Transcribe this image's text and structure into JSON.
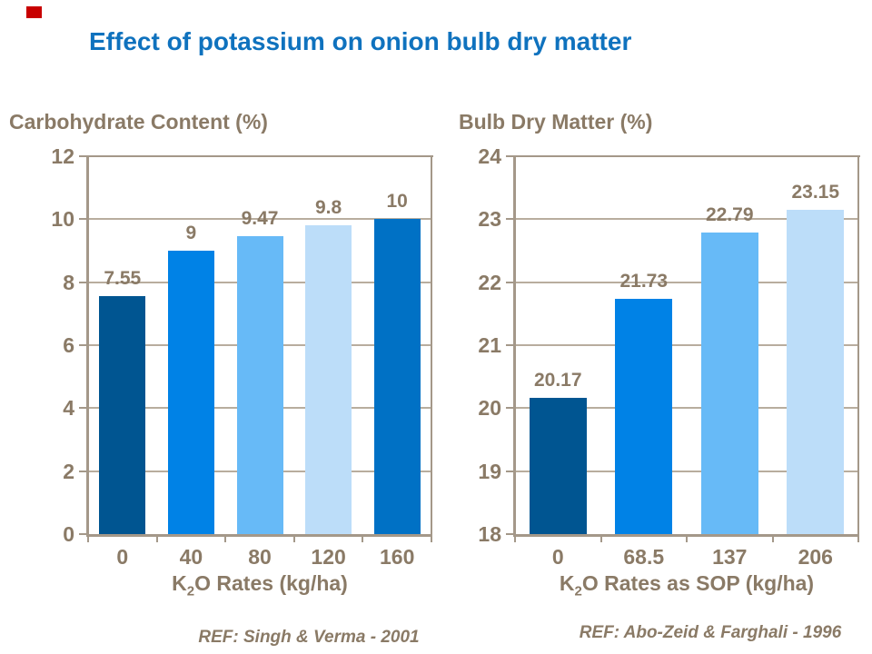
{
  "slide": {
    "title": "Effect of potassium on onion bulb dry matter"
  },
  "colors": {
    "background": "#FFFFFF",
    "title_blue": "#0F72BE",
    "text_brown": "#8A7A66",
    "axis_line": "#A49889",
    "grid_line": "#B8AD9E",
    "red_marker": "#C80000"
  },
  "chart_data": [
    {
      "type": "bar",
      "title": "Carbohydrate Content (%)",
      "xlabel": "K2O Rates (kg/ha)",
      "xlabel_parts": [
        "K",
        "2",
        "O Rates (kg/ha)"
      ],
      "ylabel": "",
      "categories": [
        "0",
        "40",
        "80",
        "120",
        "160"
      ],
      "values": [
        7.55,
        9,
        9.47,
        9.8,
        10
      ],
      "value_labels": [
        "7.55",
        "9",
        "9.47",
        "9.8",
        "10"
      ],
      "ylim": [
        0,
        12
      ],
      "yticks": [
        12,
        10,
        8,
        6,
        4,
        2,
        0
      ],
      "grid": true,
      "legend": "none",
      "bar_colors": [
        "#005591",
        "#0082E6",
        "#67BAF7",
        "#BCDDF9",
        "#0071C5"
      ],
      "ref": "REF: Singh & Verma -  2001"
    },
    {
      "type": "bar",
      "title": "Bulb Dry Matter (%)",
      "xlabel": "K2O Rates as SOP (kg/ha)",
      "xlabel_parts": [
        "K",
        "2",
        "O Rates as SOP (kg/ha)"
      ],
      "ylabel": "",
      "categories": [
        "0",
        "68.5",
        "137",
        "206"
      ],
      "values": [
        20.17,
        21.73,
        22.79,
        23.15
      ],
      "value_labels": [
        "20.17",
        "21.73",
        "22.79",
        "23.15"
      ],
      "ylim": [
        18,
        24
      ],
      "yticks": [
        24,
        23,
        22,
        21,
        20,
        19,
        18
      ],
      "grid": true,
      "legend": "none",
      "bar_colors": [
        "#005591",
        "#0082E6",
        "#67BAF7",
        "#BCDDF9"
      ],
      "ref": "REF: Abo-Zeid & Farghali - 1996"
    }
  ]
}
